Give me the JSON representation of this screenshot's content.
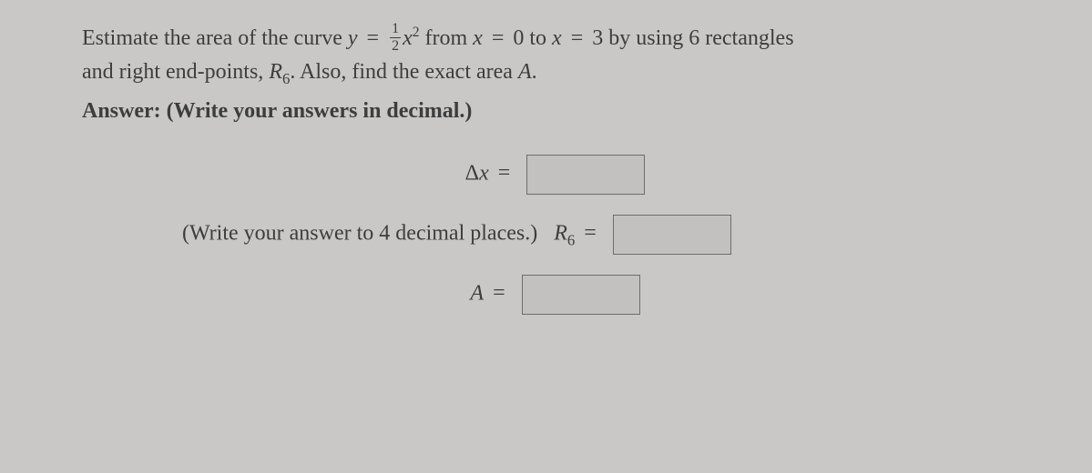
{
  "question": {
    "part1": "Estimate the area of the curve ",
    "y_eq": "y",
    "frac_num": "1",
    "frac_den": "2",
    "x_var": "x",
    "exp": "2",
    "from_txt": " from ",
    "x0_lhs": "x",
    "x0_rhs": "0",
    "to_txt": " to ",
    "x1_lhs": "x",
    "x1_rhs": "3",
    "by_txt": " by using 6 rectangles",
    "part2a": "and right end-points, ",
    "R6_sym": "R",
    "R6_sub": "6",
    "part2b": ". Also, find the exact area ",
    "A_sym": "A",
    "part2c": "."
  },
  "answer_label": "Answer:",
  "answer_hint": " (Write your answers in decimal.)",
  "rows": {
    "dx_label_delta": "Δ",
    "dx_label_x": "x",
    "eq": "=",
    "r6_hint": "(Write your answer to 4 decimal places.)",
    "r6_R": "R",
    "r6_sub": "6",
    "A_label": "A"
  },
  "colors": {
    "bg": "#c9c8c7",
    "text": "#3d3d3d",
    "input_border": "#6d6d6d",
    "input_bg": "#c2c1c0"
  }
}
